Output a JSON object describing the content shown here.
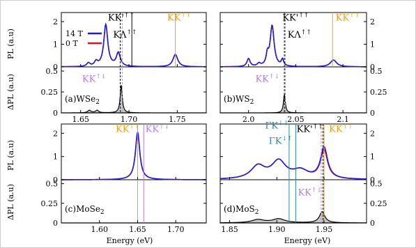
{
  "figure": {
    "xlabel": "Energy (eV)",
    "ylabel_top": "PL (a.u)",
    "ylabel_bottom": "ΔPL (a.u)",
    "legend": [
      {
        "label": "14 T",
        "color": "#1f1fd6"
      },
      {
        "label": "0 T",
        "color": "#e01414"
      }
    ]
  },
  "colors": {
    "b14": "#1f1fd6",
    "b0": "#e01414",
    "dpl_fill": "#c8c8c8",
    "orange": "#e8a21c",
    "purple": "#b07ee8",
    "teal": "#2a8a9c",
    "black": "#000000",
    "frame": "#cccccc"
  },
  "chart_data": [
    {
      "type": "line",
      "label": "(a)WSe",
      "label_sub": "2",
      "xlim": [
        1.63,
        1.78
      ],
      "xticks": [
        1.65,
        1.7,
        1.75
      ],
      "xticklabels": [
        "1.65",
        "1.70",
        "1.75"
      ],
      "pl_ylim": [
        0,
        2.4
      ],
      "pl_yticks": [
        0,
        1,
        2
      ],
      "dpl_ylim": [
        0,
        0.55
      ],
      "dpl_yticks": [
        0,
        0.25,
        0.5
      ],
      "dpl_yticklabels": [
        "0",
        "0.25",
        "0.5"
      ],
      "pl_peaks_14T": [
        {
          "e": 1.658,
          "a": 0.15,
          "w": 0.002
        },
        {
          "e": 1.666,
          "a": 0.2,
          "w": 0.002
        },
        {
          "e": 1.676,
          "a": 1.85,
          "w": 0.0025
        },
        {
          "e": 1.689,
          "a": 0.6,
          "w": 0.0025
        },
        {
          "e": 1.748,
          "a": 0.55,
          "w": 0.003
        }
      ],
      "pl_peaks_0T": [
        {
          "e": 1.658,
          "a": 0.15,
          "w": 0.002
        },
        {
          "e": 1.666,
          "a": 0.2,
          "w": 0.002
        },
        {
          "e": 1.676,
          "a": 1.85,
          "w": 0.0025
        },
        {
          "e": 1.689,
          "a": 0.58,
          "w": 0.0025
        },
        {
          "e": 1.748,
          "a": 0.55,
          "w": 0.003
        }
      ],
      "dpl_peaks": [
        {
          "e": 1.659,
          "a": 0.03,
          "w": 0.002
        },
        {
          "e": 1.667,
          "a": 0.03,
          "w": 0.002
        },
        {
          "e": 1.692,
          "a": 0.33,
          "w": 0.0013
        }
      ],
      "vlines": [
        {
          "e": 1.691,
          "color": "black",
          "dash": true,
          "span": "both"
        },
        {
          "e": 1.693,
          "color": "purple",
          "dash": true,
          "span": "both"
        },
        {
          "e": 1.703,
          "color": "black",
          "dash": false,
          "span": "top"
        },
        {
          "e": 1.748,
          "color": "orange",
          "dash": false,
          "span": "top"
        }
      ],
      "annotations": [
        {
          "text": "KK'",
          "sup": "↑↑",
          "e": 1.692,
          "panel": "pl",
          "y": 2.05,
          "color": "black"
        },
        {
          "text": "KΛ",
          "sup": "↑↑",
          "e": 1.696,
          "panel": "pl",
          "y": 1.3,
          "color": "black"
        },
        {
          "text": "KK",
          "sup": "↑↑",
          "e": 1.752,
          "panel": "pl",
          "y": 2.05,
          "color": "orange"
        },
        {
          "text": "KK",
          "sup": "↑↓",
          "e": 1.664,
          "panel": "dpl",
          "y": 0.37,
          "color": "purple"
        }
      ],
      "show_legend": true
    },
    {
      "type": "line",
      "label": "(b)WS",
      "label_sub": "2",
      "xlim": [
        1.97,
        2.125
      ],
      "xticks": [
        2.0,
        2.05,
        2.1
      ],
      "xticklabels": [
        "2.0",
        "2.05",
        "2.1"
      ],
      "pl_ylim": [
        0,
        2.4
      ],
      "pl_yticks": [
        0,
        1,
        2
      ],
      "dpl_ylim": [
        0,
        0.55
      ],
      "dpl_yticks": [
        0,
        0.25,
        0.5
      ],
      "dpl_yticklabels": [
        "0",
        "0.25",
        "0.5"
      ],
      "pl_peaks_14T": [
        {
          "e": 2.0,
          "a": 0.35,
          "w": 0.002
        },
        {
          "e": 2.011,
          "a": 0.12,
          "w": 0.002
        },
        {
          "e": 2.02,
          "a": 0.45,
          "w": 0.0015
        },
        {
          "e": 2.025,
          "a": 1.8,
          "w": 0.0025
        },
        {
          "e": 2.036,
          "a": 0.3,
          "w": 0.0015
        },
        {
          "e": 2.09,
          "a": 0.3,
          "w": 0.004
        }
      ],
      "pl_peaks_0T": [
        {
          "e": 2.0,
          "a": 0.35,
          "w": 0.002
        },
        {
          "e": 2.011,
          "a": 0.12,
          "w": 0.002
        },
        {
          "e": 2.02,
          "a": 0.45,
          "w": 0.0015
        },
        {
          "e": 2.025,
          "a": 1.8,
          "w": 0.0025
        },
        {
          "e": 2.036,
          "a": 0.28,
          "w": 0.0015
        },
        {
          "e": 2.09,
          "a": 0.3,
          "w": 0.004
        }
      ],
      "dpl_peaks": [
        {
          "e": 2.038,
          "a": 0.22,
          "w": 0.0012
        }
      ],
      "vlines": [
        {
          "e": 2.038,
          "color": "black",
          "dash": true,
          "span": "both"
        },
        {
          "e": 2.039,
          "color": "purple",
          "dash": true,
          "span": "both"
        },
        {
          "e": 2.089,
          "color": "orange",
          "dash": false,
          "span": "top"
        }
      ],
      "annotations": [
        {
          "text": "KK'",
          "sup": "↑↑",
          "e": 2.05,
          "panel": "pl",
          "y": 2.05,
          "color": "black"
        },
        {
          "text": "KΛ",
          "sup": "↑↑",
          "e": 2.054,
          "panel": "pl",
          "y": 1.3,
          "color": "black"
        },
        {
          "text": "KK",
          "sup": "↑↑",
          "e": 2.105,
          "panel": "pl",
          "y": 2.05,
          "color": "orange"
        },
        {
          "text": "KK",
          "sup": "↑↓",
          "e": 2.02,
          "panel": "dpl",
          "y": 0.37,
          "color": "purple"
        }
      ],
      "show_legend": false
    },
    {
      "type": "line",
      "label": "(c)MoSe",
      "label_sub": "2",
      "xlim": [
        1.55,
        1.74
      ],
      "xticks": [
        1.6,
        1.65,
        1.7
      ],
      "xticklabels": [
        "1.60",
        "1.65",
        "1.70"
      ],
      "pl_ylim": [
        0,
        2.4
      ],
      "pl_yticks": [
        0,
        1,
        2
      ],
      "dpl_ylim": [
        0,
        0.55
      ],
      "dpl_yticks": [
        0,
        0.25,
        0.5
      ],
      "dpl_yticklabels": [
        "0",
        "0.25",
        "0.5"
      ],
      "pl_peaks_14T": [
        {
          "e": 1.65,
          "a": 2.05,
          "w": 0.0035
        }
      ],
      "pl_peaks_0T": [
        {
          "e": 1.65,
          "a": 2.0,
          "w": 0.0035
        }
      ],
      "dpl_peaks": [],
      "vlines": [
        {
          "e": 1.65,
          "color": "orange",
          "dash": false,
          "span": "both"
        },
        {
          "e": 1.658,
          "color": "purple",
          "dash": false,
          "span": "both"
        }
      ],
      "annotations": [
        {
          "text": "KK",
          "sup": "↑↑",
          "e": 1.637,
          "panel": "pl",
          "y": 2.05,
          "color": "orange"
        },
        {
          "text": "KK",
          "sup": "↑↓",
          "e": 1.676,
          "panel": "pl",
          "y": 2.05,
          "color": "purple"
        }
      ],
      "show_legend": false
    },
    {
      "type": "line",
      "label": "(d)MoS",
      "label_sub": "2",
      "xlim": [
        1.84,
        1.995
      ],
      "xticks": [
        1.85,
        1.9,
        1.95
      ],
      "xticklabels": [
        "1.85",
        "1.90",
        "1.95"
      ],
      "pl_ylim": [
        0,
        2.4
      ],
      "pl_yticks": [
        0,
        1,
        2
      ],
      "dpl_ylim": [
        0,
        0.55
      ],
      "dpl_yticks": [
        0,
        0.25,
        0.5
      ],
      "dpl_yticklabels": [
        "0",
        "0.25",
        "0.5"
      ],
      "pl_peaks_14T": [
        {
          "e": 1.88,
          "a": 0.55,
          "w": 0.009
        },
        {
          "e": 1.902,
          "a": 0.75,
          "w": 0.009
        },
        {
          "e": 1.925,
          "a": 0.35,
          "w": 0.01
        },
        {
          "e": 1.95,
          "a": 1.35,
          "w": 0.0045
        }
      ],
      "pl_peaks_0T": [
        {
          "e": 1.88,
          "a": 0.55,
          "w": 0.009
        },
        {
          "e": 1.902,
          "a": 0.75,
          "w": 0.009
        },
        {
          "e": 1.925,
          "a": 0.35,
          "w": 0.01
        },
        {
          "e": 1.95,
          "a": 1.22,
          "w": 0.0045
        }
      ],
      "dpl_peaks": [
        {
          "e": 1.88,
          "a": 0.04,
          "w": 0.008
        },
        {
          "e": 1.902,
          "a": 0.05,
          "w": 0.008
        },
        {
          "e": 1.948,
          "a": 0.14,
          "w": 0.0035
        }
      ],
      "vlines": [
        {
          "e": 1.913,
          "color": "teal",
          "dash": false,
          "span": "both"
        },
        {
          "e": 1.92,
          "color": "teal",
          "dash": false,
          "span": "both"
        },
        {
          "e": 1.947,
          "color": "purple",
          "dash": true,
          "span": "both"
        },
        {
          "e": 1.949,
          "color": "black",
          "dash": true,
          "span": "both"
        },
        {
          "e": 1.95,
          "color": "orange",
          "dash": false,
          "span": "both"
        }
      ],
      "annotations": [
        {
          "text": "ΓK",
          "sup": "↓↓",
          "e": 1.9,
          "panel": "pl",
          "y": 2.2,
          "color": "teal"
        },
        {
          "text": "ΓK",
          "sup": "↓↑",
          "e": 1.904,
          "panel": "pl",
          "y": 1.55,
          "color": "teal"
        },
        {
          "text": "KK'",
          "sup": "↑↑",
          "e": 1.935,
          "panel": "pl",
          "y": 2.05,
          "color": "black"
        },
        {
          "text": "KK",
          "sup": "↑↑",
          "e": 1.968,
          "panel": "pl",
          "y": 2.05,
          "color": "orange"
        },
        {
          "text": "KK",
          "sup": "↑↓",
          "e": 1.935,
          "panel": "dpl",
          "y": 0.35,
          "color": "purple"
        }
      ],
      "show_legend": false
    }
  ]
}
